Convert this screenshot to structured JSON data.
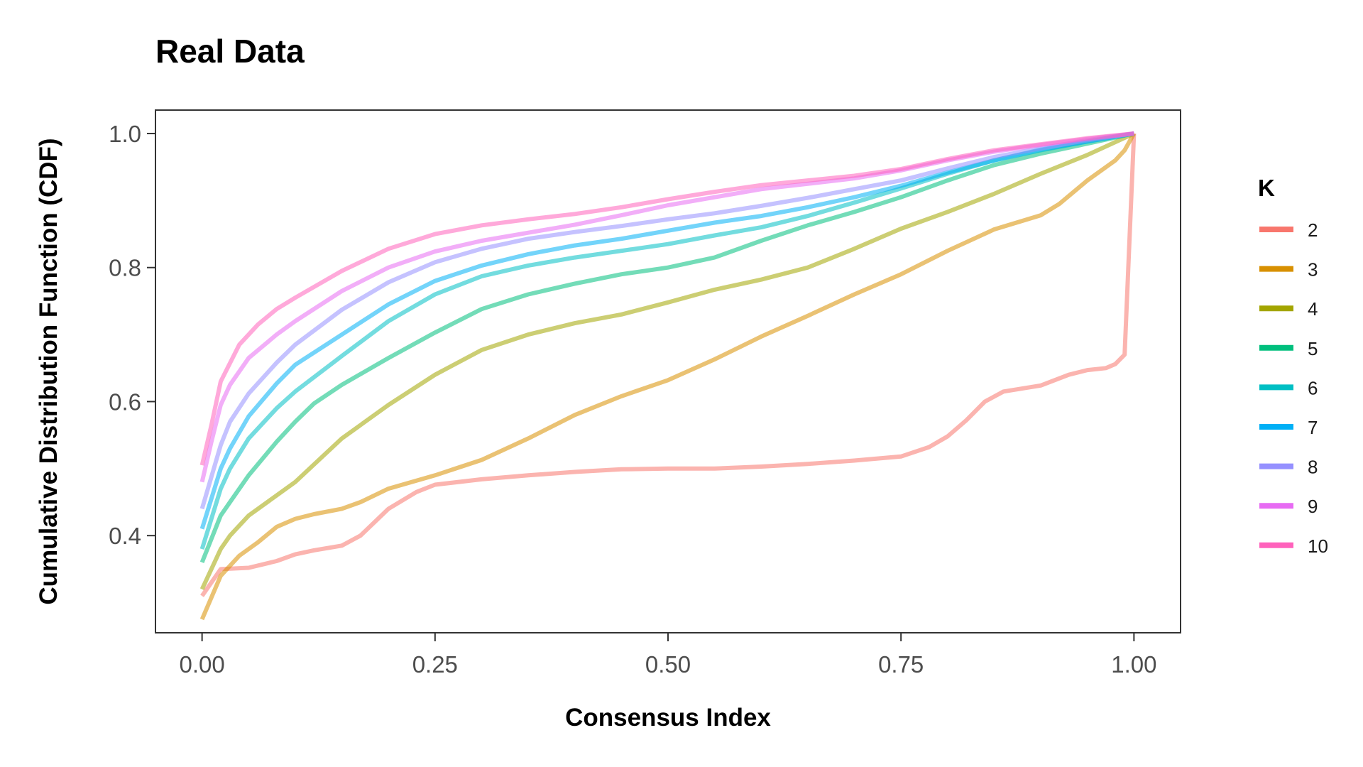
{
  "chart_data": {
    "type": "line",
    "title": "Real Data",
    "xlabel": "Consensus Index",
    "ylabel": "Cumulative Distribution Function (CDF)",
    "xlim": [
      -0.05,
      1.05
    ],
    "ylim": [
      0.255,
      1.035
    ],
    "x_ticks": [
      0.0,
      0.25,
      0.5,
      0.75,
      1.0
    ],
    "x_tick_labels": [
      "0.00",
      "0.25",
      "0.50",
      "0.75",
      "1.00"
    ],
    "y_ticks": [
      0.4,
      0.6,
      0.8,
      1.0
    ],
    "y_tick_labels": [
      "0.4",
      "0.6",
      "0.8",
      "1.0"
    ],
    "grid": false,
    "legend": {
      "title": "K",
      "position": "right"
    },
    "series": [
      {
        "name": "2",
        "color": "#F8766D",
        "x": [
          0,
          0.02,
          0.05,
          0.08,
          0.1,
          0.12,
          0.15,
          0.17,
          0.2,
          0.23,
          0.25,
          0.3,
          0.35,
          0.4,
          0.45,
          0.5,
          0.55,
          0.6,
          0.65,
          0.7,
          0.75,
          0.78,
          0.8,
          0.82,
          0.84,
          0.86,
          0.9,
          0.93,
          0.95,
          0.97,
          0.98,
          0.99,
          1.0
        ],
        "y": [
          0.31,
          0.35,
          0.352,
          0.362,
          0.372,
          0.378,
          0.385,
          0.4,
          0.44,
          0.465,
          0.476,
          0.484,
          0.49,
          0.495,
          0.499,
          0.5,
          0.5,
          0.503,
          0.507,
          0.512,
          0.518,
          0.532,
          0.548,
          0.572,
          0.6,
          0.615,
          0.624,
          0.64,
          0.647,
          0.65,
          0.656,
          0.67,
          1.0
        ]
      },
      {
        "name": "3",
        "color": "#D89000",
        "x": [
          0,
          0.02,
          0.04,
          0.06,
          0.08,
          0.1,
          0.12,
          0.15,
          0.17,
          0.2,
          0.25,
          0.3,
          0.35,
          0.4,
          0.45,
          0.5,
          0.55,
          0.6,
          0.65,
          0.7,
          0.75,
          0.8,
          0.85,
          0.9,
          0.92,
          0.95,
          0.98,
          0.99,
          1.0
        ],
        "y": [
          0.275,
          0.34,
          0.37,
          0.39,
          0.413,
          0.425,
          0.432,
          0.44,
          0.45,
          0.47,
          0.49,
          0.513,
          0.545,
          0.58,
          0.608,
          0.632,
          0.663,
          0.697,
          0.728,
          0.76,
          0.79,
          0.825,
          0.857,
          0.878,
          0.895,
          0.93,
          0.96,
          0.975,
          1.0
        ]
      },
      {
        "name": "4",
        "color": "#A3A500",
        "x": [
          0,
          0.02,
          0.03,
          0.05,
          0.08,
          0.1,
          0.15,
          0.2,
          0.25,
          0.3,
          0.35,
          0.4,
          0.45,
          0.5,
          0.55,
          0.6,
          0.65,
          0.7,
          0.75,
          0.8,
          0.85,
          0.9,
          0.95,
          1.0
        ],
        "y": [
          0.32,
          0.38,
          0.4,
          0.43,
          0.46,
          0.48,
          0.545,
          0.595,
          0.64,
          0.677,
          0.7,
          0.717,
          0.73,
          0.748,
          0.767,
          0.782,
          0.8,
          0.828,
          0.858,
          0.883,
          0.91,
          0.94,
          0.968,
          1.0
        ]
      },
      {
        "name": "5",
        "color": "#00BF7D",
        "x": [
          0,
          0.02,
          0.03,
          0.05,
          0.08,
          0.1,
          0.12,
          0.15,
          0.2,
          0.25,
          0.3,
          0.35,
          0.4,
          0.45,
          0.5,
          0.55,
          0.6,
          0.65,
          0.7,
          0.75,
          0.8,
          0.85,
          0.9,
          0.95,
          1.0
        ],
        "y": [
          0.36,
          0.43,
          0.45,
          0.49,
          0.54,
          0.57,
          0.597,
          0.625,
          0.665,
          0.703,
          0.738,
          0.76,
          0.776,
          0.79,
          0.8,
          0.815,
          0.84,
          0.863,
          0.883,
          0.905,
          0.93,
          0.953,
          0.97,
          0.985,
          1.0
        ]
      },
      {
        "name": "6",
        "color": "#00BFC4",
        "x": [
          0,
          0.02,
          0.03,
          0.05,
          0.08,
          0.1,
          0.15,
          0.2,
          0.25,
          0.3,
          0.35,
          0.4,
          0.45,
          0.5,
          0.55,
          0.6,
          0.65,
          0.7,
          0.75,
          0.8,
          0.85,
          0.9,
          0.95,
          1.0
        ],
        "y": [
          0.38,
          0.47,
          0.5,
          0.545,
          0.59,
          0.615,
          0.668,
          0.72,
          0.76,
          0.787,
          0.803,
          0.815,
          0.825,
          0.835,
          0.848,
          0.86,
          0.877,
          0.897,
          0.918,
          0.94,
          0.96,
          0.975,
          0.988,
          1.0
        ]
      },
      {
        "name": "7",
        "color": "#00B0F6",
        "x": [
          0,
          0.02,
          0.03,
          0.05,
          0.08,
          0.1,
          0.15,
          0.2,
          0.25,
          0.3,
          0.35,
          0.4,
          0.45,
          0.5,
          0.55,
          0.6,
          0.65,
          0.7,
          0.75,
          0.8,
          0.85,
          0.9,
          0.95,
          1.0
        ],
        "y": [
          0.41,
          0.5,
          0.53,
          0.578,
          0.627,
          0.655,
          0.7,
          0.745,
          0.78,
          0.803,
          0.82,
          0.833,
          0.843,
          0.855,
          0.867,
          0.877,
          0.89,
          0.905,
          0.922,
          0.942,
          0.96,
          0.976,
          0.988,
          1.0
        ]
      },
      {
        "name": "8",
        "color": "#9590FF",
        "x": [
          0,
          0.02,
          0.03,
          0.05,
          0.08,
          0.1,
          0.15,
          0.2,
          0.25,
          0.3,
          0.35,
          0.4,
          0.45,
          0.5,
          0.55,
          0.6,
          0.65,
          0.7,
          0.75,
          0.8,
          0.85,
          0.9,
          0.95,
          1.0
        ],
        "y": [
          0.44,
          0.535,
          0.57,
          0.612,
          0.658,
          0.685,
          0.737,
          0.778,
          0.808,
          0.828,
          0.843,
          0.853,
          0.862,
          0.872,
          0.881,
          0.892,
          0.904,
          0.917,
          0.93,
          0.948,
          0.965,
          0.978,
          0.99,
          1.0
        ]
      },
      {
        "name": "9",
        "color": "#E76BF3",
        "x": [
          0,
          0.01,
          0.02,
          0.03,
          0.05,
          0.08,
          0.1,
          0.15,
          0.2,
          0.25,
          0.3,
          0.35,
          0.4,
          0.45,
          0.5,
          0.55,
          0.6,
          0.65,
          0.7,
          0.75,
          0.8,
          0.85,
          0.9,
          0.95,
          1.0
        ],
        "y": [
          0.48,
          0.54,
          0.595,
          0.625,
          0.665,
          0.7,
          0.72,
          0.765,
          0.8,
          0.824,
          0.84,
          0.852,
          0.864,
          0.878,
          0.893,
          0.905,
          0.917,
          0.925,
          0.933,
          0.945,
          0.96,
          0.973,
          0.983,
          0.992,
          1.0
        ]
      },
      {
        "name": "10",
        "color": "#FF62BC",
        "x": [
          0,
          0.01,
          0.02,
          0.04,
          0.06,
          0.08,
          0.1,
          0.15,
          0.2,
          0.25,
          0.3,
          0.35,
          0.4,
          0.45,
          0.5,
          0.55,
          0.6,
          0.65,
          0.7,
          0.75,
          0.8,
          0.85,
          0.9,
          0.95,
          1.0
        ],
        "y": [
          0.505,
          0.565,
          0.63,
          0.685,
          0.715,
          0.738,
          0.755,
          0.795,
          0.828,
          0.85,
          0.863,
          0.872,
          0.88,
          0.89,
          0.902,
          0.913,
          0.923,
          0.93,
          0.937,
          0.947,
          0.962,
          0.975,
          0.984,
          0.993,
          1.0
        ]
      }
    ]
  }
}
